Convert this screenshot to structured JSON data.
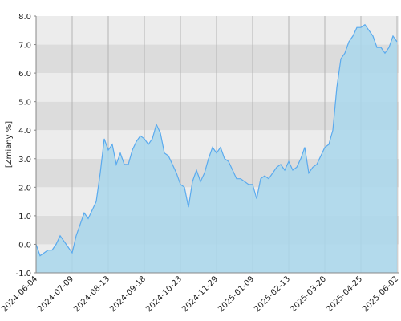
{
  "chart_data": {
    "type": "area",
    "y_label": "[Zmiany %]",
    "categories": [
      "2024-06-04",
      null,
      null,
      null,
      null,
      null,
      null,
      null,
      null,
      "2024-07-09",
      null,
      null,
      null,
      null,
      null,
      null,
      null,
      null,
      "2024-08-13",
      null,
      null,
      null,
      null,
      null,
      null,
      null,
      null,
      "2024-09-18",
      null,
      null,
      null,
      null,
      null,
      null,
      null,
      null,
      "2024-10-23",
      null,
      null,
      null,
      null,
      null,
      null,
      null,
      null,
      "2024-11-29",
      null,
      null,
      null,
      null,
      null,
      null,
      null,
      null,
      "2025-01-09",
      null,
      null,
      null,
      null,
      null,
      null,
      null,
      null,
      "2025-02-13",
      null,
      null,
      null,
      null,
      null,
      null,
      null,
      null,
      "2025-03-20",
      null,
      null,
      null,
      null,
      null,
      null,
      null,
      null,
      "2025-04-25",
      null,
      null,
      null,
      null,
      null,
      null,
      null,
      null,
      "2025-06-02"
    ],
    "values": [
      0.0,
      -0.4,
      -0.3,
      -0.2,
      -0.2,
      0.0,
      0.3,
      0.1,
      -0.1,
      -0.3,
      0.3,
      0.7,
      1.1,
      0.9,
      1.2,
      1.5,
      2.5,
      3.7,
      3.3,
      3.5,
      2.8,
      3.2,
      2.8,
      2.8,
      3.3,
      3.6,
      3.8,
      3.7,
      3.5,
      3.7,
      4.2,
      3.9,
      3.2,
      3.1,
      2.8,
      2.5,
      2.1,
      2.0,
      1.3,
      2.2,
      2.6,
      2.2,
      2.5,
      3.0,
      3.4,
      3.2,
      3.4,
      3.0,
      2.9,
      2.6,
      2.3,
      2.3,
      2.2,
      2.1,
      2.1,
      1.6,
      2.3,
      2.4,
      2.3,
      2.5,
      2.7,
      2.8,
      2.6,
      2.9,
      2.6,
      2.7,
      3.0,
      3.4,
      2.5,
      2.7,
      2.8,
      3.1,
      3.4,
      3.5,
      4.0,
      5.5,
      6.5,
      6.7,
      7.1,
      7.3,
      7.6,
      7.6,
      7.7,
      7.5,
      7.3,
      6.9,
      6.9,
      6.7,
      6.9,
      7.3,
      7.1
    ],
    "color": "#5aaaee",
    "fill_color": "#a9d7ec",
    "ylim": [
      -1,
      8
    ],
    "yticks": [
      {
        "value": -1,
        "label": "-1.0"
      },
      {
        "value": 0,
        "label": "0.0"
      },
      {
        "value": 1,
        "label": "1.0"
      },
      {
        "value": 2,
        "label": "2.0"
      },
      {
        "value": 3,
        "label": "3.0"
      },
      {
        "value": 4,
        "label": "4.0"
      },
      {
        "value": 5,
        "label": "5.0"
      },
      {
        "value": 6,
        "label": "6.0"
      },
      {
        "value": 7,
        "label": "7.0"
      },
      {
        "value": 8,
        "label": "8.0"
      }
    ],
    "grid": true
  }
}
